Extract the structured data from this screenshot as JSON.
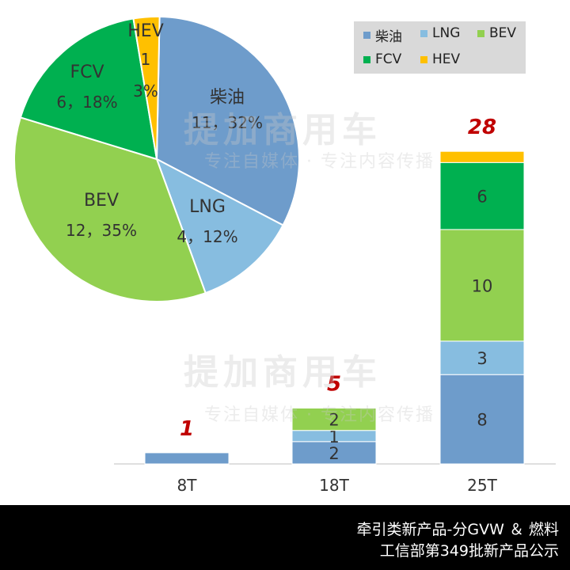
{
  "chart_data": [
    {
      "type": "pie",
      "series": [
        "柴油",
        "LNG",
        "BEV",
        "FCV",
        "HEV"
      ],
      "values": [
        11,
        4,
        12,
        6,
        1
      ],
      "percent_labels": [
        "11，32%",
        "4，12%",
        "12，35%",
        "6，18%",
        "1\n3%"
      ],
      "colors": [
        "#6e9ccb",
        "#87bde0",
        "#92d050",
        "#00b050",
        "#ffc000"
      ]
    },
    {
      "type": "bar",
      "stacked": true,
      "categories": [
        "8T",
        "18T",
        "25T"
      ],
      "series": [
        {
          "name": "柴油",
          "values": [
            1,
            2,
            8
          ],
          "color": "#6e9ccb"
        },
        {
          "name": "LNG",
          "values": [
            0,
            1,
            3
          ],
          "color": "#87bde0"
        },
        {
          "name": "BEV",
          "values": [
            0,
            2,
            10
          ],
          "color": "#92d050"
        },
        {
          "name": "FCV",
          "values": [
            0,
            0,
            6
          ],
          "color": "#00b050"
        },
        {
          "name": "HEV",
          "values": [
            0,
            0,
            1
          ],
          "color": "#ffc000"
        }
      ],
      "totals": [
        1,
        5,
        28
      ],
      "segment_labels_shown": [
        [
          false,
          false,
          false,
          false,
          false
        ],
        [
          true,
          true,
          true,
          false,
          false
        ],
        [
          true,
          true,
          true,
          true,
          false
        ]
      ]
    }
  ],
  "legend": [
    {
      "label": "柴油",
      "color": "#6e9ccb"
    },
    {
      "label": "LNG",
      "color": "#87bde0"
    },
    {
      "label": "BEV",
      "color": "#92d050"
    },
    {
      "label": "FCV",
      "color": "#00b050"
    },
    {
      "label": "HEV",
      "color": "#ffc000"
    }
  ],
  "footer": {
    "line1": "牵引类新产品-分GVW ＆ 燃料",
    "line2": "工信部第349批新产品公示"
  },
  "watermark": {
    "brand": "提加商用车",
    "slogan": "专注自媒体 · 专注内容传播"
  }
}
